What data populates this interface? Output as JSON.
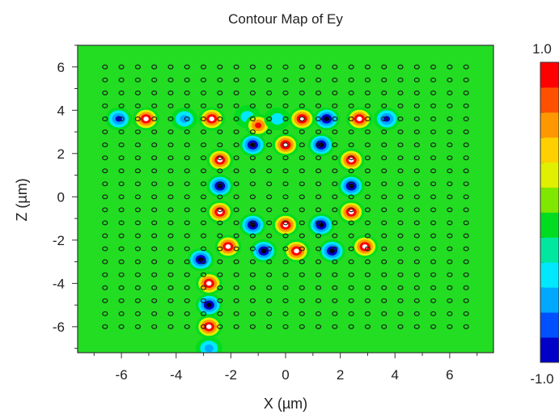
{
  "chart_data": {
    "type": "heatmap",
    "title": "Contour Map of Ey",
    "xlabel": "X (µm)",
    "ylabel": "Z (µm)",
    "xlim": [
      -7.6,
      7.6
    ],
    "ylim": [
      -7.2,
      7.0
    ],
    "x_ticks": [
      -6,
      -4,
      -2,
      0,
      2,
      4,
      6
    ],
    "y_ticks": [
      6,
      4,
      2,
      0,
      -2,
      -4,
      -6
    ],
    "x_tick_labels": [
      "-6",
      "-4",
      "-2",
      "0",
      "2",
      "4",
      "6"
    ],
    "y_tick_labels": [
      "6",
      "4",
      "2",
      "0",
      "-2",
      "-4",
      "-6"
    ],
    "grid": false,
    "background_value": 0.0,
    "colorbar": {
      "max_label": "1.0",
      "min_label": "-1.0",
      "min": -1.0,
      "max": 1.0,
      "levels": 12,
      "colors": [
        "#0000c8",
        "#0050ff",
        "#00a8ff",
        "#00e8ff",
        "#00e8a0",
        "#00dc20",
        "#80e800",
        "#e0f000",
        "#ffd000",
        "#ff9800",
        "#ff5000",
        "#ff0000"
      ]
    },
    "lattice": {
      "spacing": 0.6,
      "x_range": [
        -6.6,
        6.6
      ],
      "z_range": [
        -6.0,
        6.0
      ]
    },
    "field_hotspots": [
      {
        "x": -6.1,
        "z": 3.6,
        "value": -0.7
      },
      {
        "x": -5.1,
        "z": 3.6,
        "value": 1.0
      },
      {
        "x": -3.7,
        "z": 3.6,
        "value": -0.5
      },
      {
        "x": -2.7,
        "z": 3.6,
        "value": 1.0
      },
      {
        "x": -1.4,
        "z": 3.7,
        "value": -0.4
      },
      {
        "x": -1.0,
        "z": 3.3,
        "value": 0.8
      },
      {
        "x": -0.3,
        "z": 3.6,
        "value": -0.3
      },
      {
        "x": 0.6,
        "z": 3.6,
        "value": 1.0
      },
      {
        "x": 1.5,
        "z": 3.6,
        "value": -0.9
      },
      {
        "x": 2.7,
        "z": 3.6,
        "value": 1.0
      },
      {
        "x": 3.7,
        "z": 3.6,
        "value": -0.7
      },
      {
        "x": -1.2,
        "z": 2.4,
        "value": -1.0
      },
      {
        "x": 0.0,
        "z": 2.4,
        "value": 1.0
      },
      {
        "x": 1.3,
        "z": 2.4,
        "value": -1.0
      },
      {
        "x": -2.4,
        "z": 1.7,
        "value": 1.0
      },
      {
        "x": 2.4,
        "z": 1.7,
        "value": 1.0
      },
      {
        "x": -2.4,
        "z": 0.5,
        "value": -1.0
      },
      {
        "x": 2.4,
        "z": 0.5,
        "value": -1.0
      },
      {
        "x": -2.4,
        "z": -0.7,
        "value": 1.0
      },
      {
        "x": 2.4,
        "z": -0.7,
        "value": 1.0
      },
      {
        "x": -1.2,
        "z": -1.3,
        "value": -1.0
      },
      {
        "x": 0.0,
        "z": -1.3,
        "value": 1.0
      },
      {
        "x": 1.3,
        "z": -1.3,
        "value": -1.0
      },
      {
        "x": -2.1,
        "z": -2.3,
        "value": 1.0
      },
      {
        "x": -0.8,
        "z": -2.5,
        "value": -1.0
      },
      {
        "x": 0.4,
        "z": -2.5,
        "value": 1.0
      },
      {
        "x": 1.7,
        "z": -2.5,
        "value": -1.0
      },
      {
        "x": 2.9,
        "z": -2.3,
        "value": 1.0
      },
      {
        "x": -3.1,
        "z": -2.9,
        "value": -1.0
      },
      {
        "x": -2.8,
        "z": -4.0,
        "value": 1.0
      },
      {
        "x": -2.8,
        "z": -5.0,
        "value": -1.0
      },
      {
        "x": -2.8,
        "z": -6.0,
        "value": 1.0
      },
      {
        "x": -2.8,
        "z": -7.0,
        "value": -0.6
      }
    ]
  }
}
